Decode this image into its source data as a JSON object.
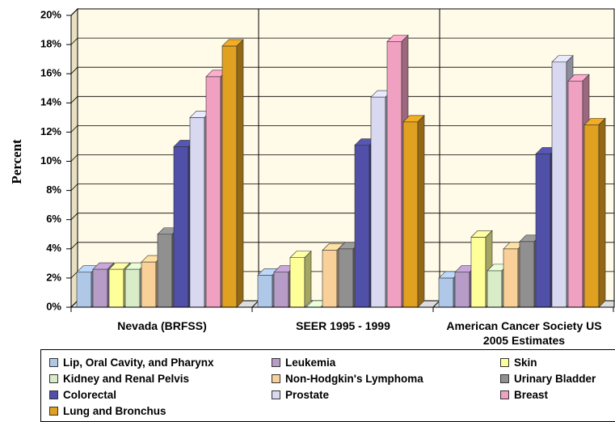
{
  "chart_data": {
    "type": "bar3d",
    "ylabel": "Percent",
    "categories": [
      "Nevada (BRFSS)",
      "SEER 1995 - 1999",
      "American Cancer Society US 2005 Estimates"
    ],
    "ylim": [
      0,
      20
    ],
    "yticks": [
      {
        "value": 0,
        "label": "0%"
      },
      {
        "value": 2,
        "label": "2%"
      },
      {
        "value": 4,
        "label": "4%"
      },
      {
        "value": 6,
        "label": "6%"
      },
      {
        "value": 8,
        "label": "8%"
      },
      {
        "value": 10,
        "label": "10%"
      },
      {
        "value": 12,
        "label": "12%"
      },
      {
        "value": 14,
        "label": "14%"
      },
      {
        "value": 16,
        "label": "16%"
      },
      {
        "value": 18,
        "label": "18%"
      },
      {
        "value": 20,
        "label": "20%"
      }
    ],
    "grid": true,
    "series": [
      {
        "name": "Lip, Oral Cavity, and Pharynx",
        "color": "#b0c8e8",
        "values": [
          2.4,
          2.2,
          2.0
        ]
      },
      {
        "name": "Leukemia",
        "color": "#b89cc8",
        "values": [
          2.6,
          2.4,
          2.4
        ]
      },
      {
        "name": "Skin",
        "color": "#ffff99",
        "values": [
          2.6,
          3.4,
          4.8
        ]
      },
      {
        "name": "Kidney and Renal Pelvis",
        "color": "#d8ecc8",
        "values": [
          2.6,
          0,
          2.5
        ]
      },
      {
        "name": "Non-Hodgkin's Lymphoma",
        "color": "#f8d098",
        "values": [
          3.1,
          3.9,
          4.0
        ]
      },
      {
        "name": "Urinary Bladder",
        "color": "#909090",
        "values": [
          5.0,
          4.0,
          4.5
        ]
      },
      {
        "name": "Colorectal",
        "color": "#5050a8",
        "values": [
          11.0,
          11.1,
          10.5
        ]
      },
      {
        "name": "Prostate",
        "color": "#d8d8f0",
        "values": [
          13.0,
          14.4,
          16.8
        ]
      },
      {
        "name": "Breast",
        "color": "#f0a0c0",
        "values": [
          15.8,
          18.2,
          15.5
        ]
      },
      {
        "name": "Lung and Bronchus",
        "color": "#e0a020",
        "values": [
          17.9,
          12.7,
          12.5
        ]
      }
    ]
  }
}
